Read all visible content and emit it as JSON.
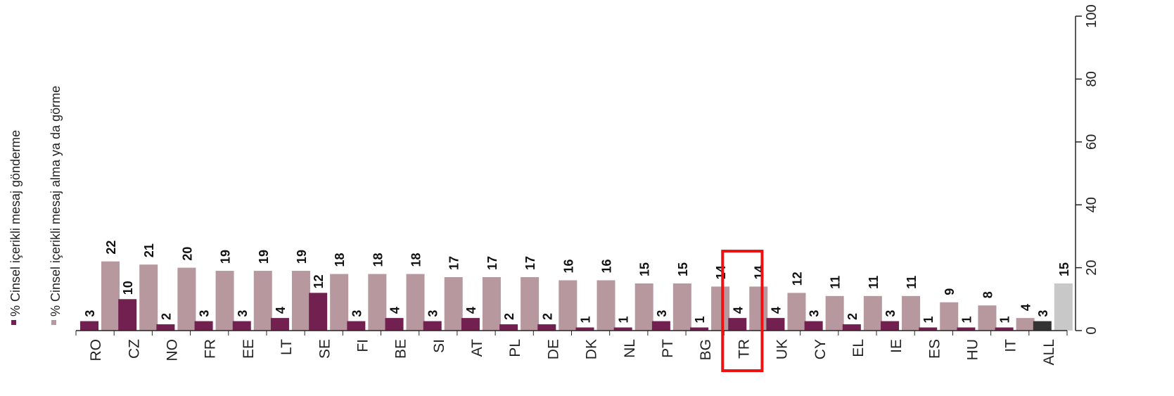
{
  "chart_data": {
    "type": "bar",
    "categories": [
      "RO",
      "CZ",
      "NO",
      "FR",
      "EE",
      "LT",
      "SE",
      "FI",
      "BE",
      "SI",
      "AT",
      "PL",
      "DE",
      "DK",
      "NL",
      "PT",
      "BG",
      "TR",
      "UK",
      "CY",
      "EL",
      "IE",
      "ES",
      "HU",
      "IT",
      "ALL"
    ],
    "series": [
      {
        "name": "% Cinsel içerikli mesaj gönderme",
        "color": "#722050",
        "values": [
          3,
          10,
          2,
          3,
          3,
          4,
          12,
          3,
          4,
          3,
          4,
          2,
          2,
          1,
          1,
          3,
          1,
          4,
          4,
          3,
          2,
          3,
          1,
          1,
          1,
          3
        ],
        "labels": [
          "3",
          "10",
          "2",
          "3",
          "3",
          "4",
          "12",
          "3",
          "4",
          "3",
          "4",
          "2",
          "2",
          "1",
          "1",
          "3",
          "1",
          "4",
          "4",
          "3",
          "2",
          "3",
          "1",
          "1",
          "1",
          "3"
        ]
      },
      {
        "name": "% Cinsel içerikli mesaj alma ya da görme",
        "color": "#b8989f",
        "values": [
          22,
          21,
          20,
          19,
          19,
          19,
          18,
          18,
          18,
          17,
          17,
          17,
          16,
          16,
          15,
          15,
          14,
          14,
          12,
          11,
          11,
          11,
          9,
          8,
          4,
          15
        ],
        "labels": [
          "22",
          "21",
          "20",
          "19",
          "19",
          "19",
          "18",
          "18",
          "18",
          "17",
          "17",
          "17",
          "16",
          "16",
          "15",
          "15",
          "14",
          "14",
          "12",
          "11",
          "11",
          "11",
          "9",
          "8",
          "4",
          "15"
        ]
      }
    ],
    "highlight_colors": {
      "ALL_series1": "#333333",
      "ALL_series2": "#c8c8c8",
      "highlight_box": "#ee1111"
    },
    "highlighted_category": "TR",
    "y_axis": {
      "range": [
        0,
        100
      ],
      "ticks": [
        "0",
        "20",
        "40",
        "60",
        "80",
        "100"
      ],
      "position": "right"
    },
    "legend": {
      "position": "left"
    },
    "grid": false,
    "title": "",
    "xlabel": "",
    "ylabel": ""
  }
}
